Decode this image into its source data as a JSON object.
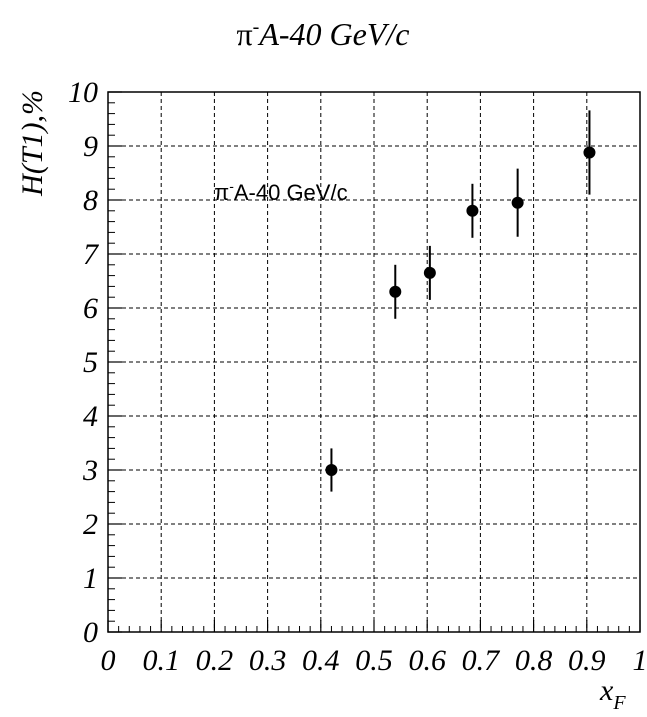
{
  "chart_data": {
    "type": "scatter",
    "title_main": "A-40 GeV/c",
    "title_particle": "π",
    "title_sup": "-",
    "annotation_particle": "π",
    "annotation_sup": "-",
    "annotation_main": "A-40 GeV/c",
    "xlabel_main": "x",
    "xlabel_sub": "F",
    "ylabel": "H(T1),%",
    "xlim": [
      0,
      1
    ],
    "ylim": [
      0,
      10
    ],
    "x_ticks": [
      "0",
      "0.1",
      "0.2",
      "0.3",
      "0.4",
      "0.5",
      "0.6",
      "0.7",
      "0.8",
      "0.9",
      "1"
    ],
    "y_ticks": [
      "0",
      "1",
      "2",
      "3",
      "4",
      "5",
      "6",
      "7",
      "8",
      "9",
      "10"
    ],
    "grid": true,
    "points": [
      {
        "x": 0.42,
        "y": 3.0,
        "err": 0.4
      },
      {
        "x": 0.54,
        "y": 6.3,
        "err": 0.5
      },
      {
        "x": 0.605,
        "y": 6.65,
        "err": 0.5
      },
      {
        "x": 0.685,
        "y": 7.8,
        "err": 0.5
      },
      {
        "x": 0.77,
        "y": 7.95,
        "err": 0.63
      },
      {
        "x": 0.905,
        "y": 8.88,
        "err": 0.78
      }
    ],
    "marker_color": "#000000"
  }
}
